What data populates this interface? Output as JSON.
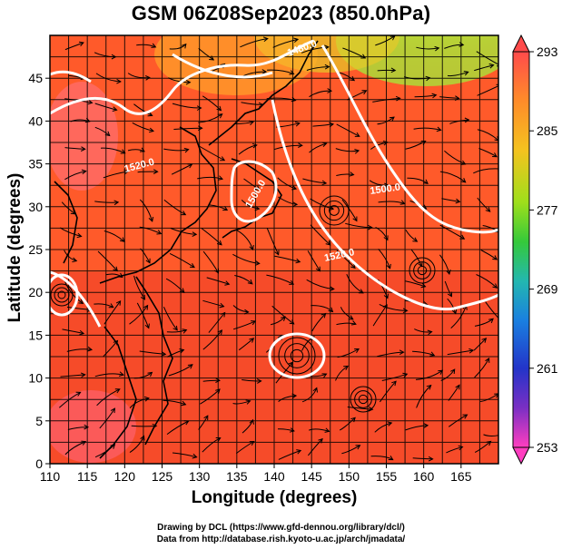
{
  "title": "GSM 06Z08Sep2023 (850.0hPa)",
  "x_axis": {
    "label": "Longitude (degrees)",
    "ticks": [
      "110",
      "115",
      "120",
      "125",
      "130",
      "135",
      "140",
      "145",
      "150",
      "155",
      "160",
      "165"
    ],
    "range": [
      110,
      170
    ]
  },
  "y_axis": {
    "label": "Latitude  (degrees)",
    "ticks": [
      "0",
      "5",
      "10",
      "15",
      "20",
      "25",
      "30",
      "35",
      "40",
      "45"
    ],
    "range": [
      0,
      50
    ]
  },
  "colorbar": {
    "ticks": [
      "293",
      "285",
      "277",
      "269",
      "261",
      "253"
    ],
    "values": [
      293,
      285,
      277,
      269,
      261,
      253
    ],
    "colors": [
      "#ff4b4b",
      "#ff8a2a",
      "#f4c31f",
      "#9fdf1b",
      "#35c93a",
      "#23b7b0",
      "#1a7fe0",
      "#2334c9",
      "#7a2fc4",
      "#ff3ec0"
    ]
  },
  "contours": [
    {
      "label": "1480.0"
    },
    {
      "label": "1520.0"
    },
    {
      "label": "1500.0"
    },
    {
      "label": "1500.0"
    },
    {
      "label": "1520.0"
    }
  ],
  "credits": [
    "Drawing by DCL (https://www.gfd-dennou.org/library/dcl/)",
    "Data from http://database.rish.kyoto-u.ac.jp/arch/jmadata/"
  ],
  "colors": {
    "warm": "#ff5a2a",
    "hot": "#f2352a",
    "cool": "#a6e33a",
    "contour": "#ffffff",
    "streamline": "#000000"
  },
  "icons": {
    "colorbar_top": "triangle-up-icon",
    "colorbar_bottom": "triangle-down-icon"
  }
}
